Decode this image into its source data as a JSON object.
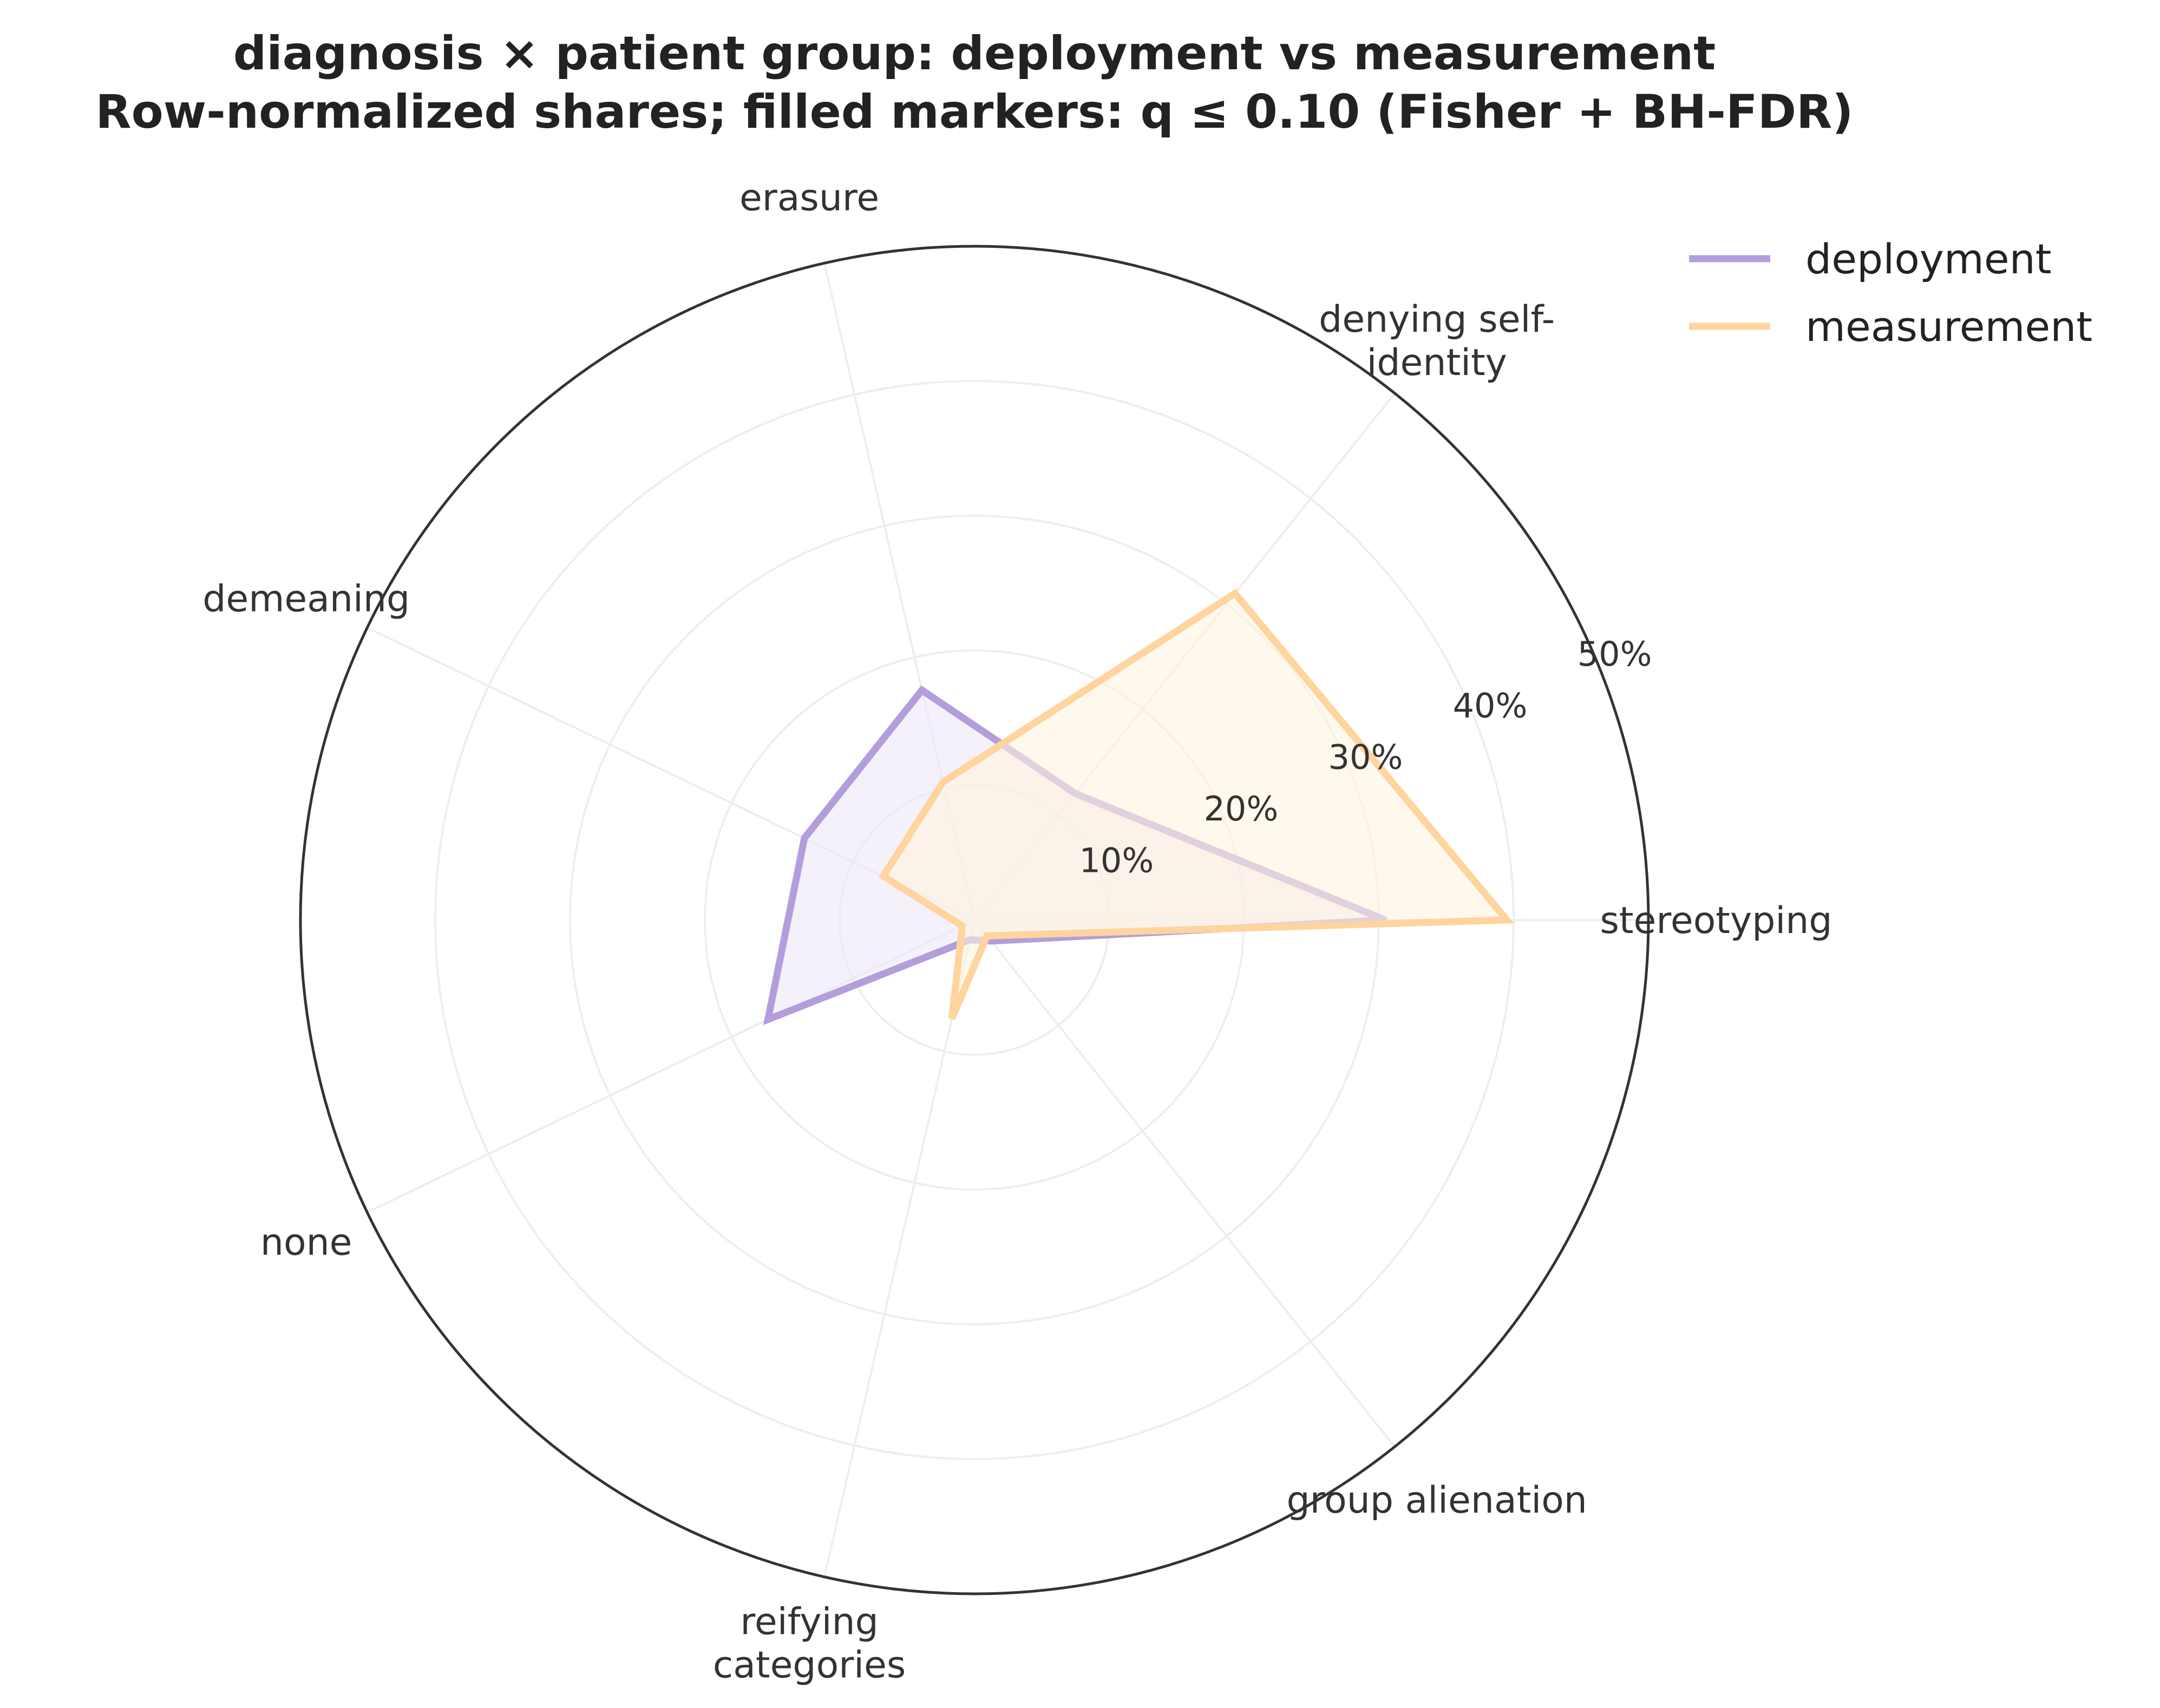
{
  "chart_data": {
    "type": "radar",
    "title_line1": "diagnosis × patient group: deployment vs measurement",
    "title_line2": "Row-normalized shares; filled markers: q ≤ 0.10 (Fisher + BH-FDR)",
    "categories": [
      {
        "lines": [
          "stereotyping"
        ]
      },
      {
        "lines": [
          "denying self-",
          "identity"
        ]
      },
      {
        "lines": [
          "erasure"
        ]
      },
      {
        "lines": [
          "demeaning"
        ]
      },
      {
        "lines": [
          "none"
        ]
      },
      {
        "lines": [
          "reifying",
          "categories"
        ]
      },
      {
        "lines": [
          "group alienation"
        ]
      }
    ],
    "rmax": 50,
    "rticks": [
      10,
      20,
      30,
      40,
      50
    ],
    "rtick_labels": [
      "10%",
      "20%",
      "30%",
      "40%",
      "50%"
    ],
    "grid": true,
    "legend_position": "top-right",
    "series": [
      {
        "name": "deployment",
        "color": "#b39ddb",
        "fill": "#ede7f6",
        "values": [
          30.5,
          12.0,
          17.5,
          14.0,
          17.0,
          1.5,
          2.0
        ]
      },
      {
        "name": "measurement",
        "color": "#ffd49e",
        "fill": "#fff3e0",
        "values": [
          39.5,
          31.0,
          10.5,
          7.5,
          1.0,
          7.5,
          1.5
        ]
      }
    ]
  }
}
